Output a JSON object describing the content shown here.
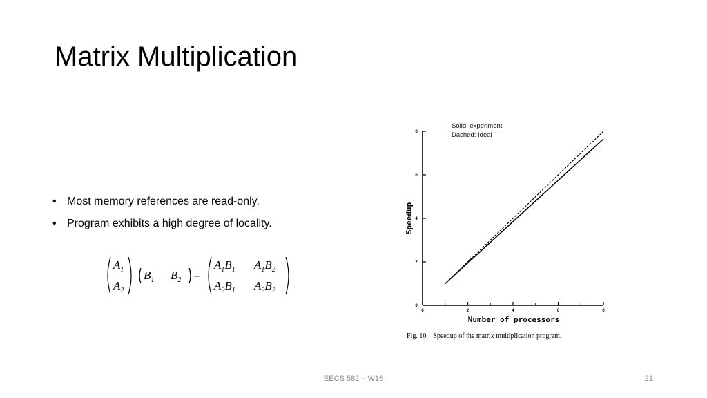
{
  "slide": {
    "title": "Matrix Multiplication",
    "bullets": [
      "Most memory references are read-only.",
      "Program exhibits a high degree of locality."
    ],
    "footer": "EECS 582 – W16",
    "page_number": "21"
  },
  "equation": {
    "left_vector": [
      {
        "v": "A",
        "s": "1"
      },
      {
        "v": "A",
        "s": "2"
      }
    ],
    "row_vector": [
      {
        "v": "B",
        "s": "1"
      },
      {
        "v": "B",
        "s": "2"
      }
    ],
    "equals": "=",
    "result": [
      [
        {
          "a": "A",
          "as": "1",
          "b": "B",
          "bs": "1"
        },
        {
          "a": "A",
          "as": "1",
          "b": "B",
          "bs": "2"
        }
      ],
      [
        {
          "a": "A",
          "as": "2",
          "b": "B",
          "bs": "1"
        },
        {
          "a": "A",
          "as": "2",
          "b": "B",
          "bs": "2"
        }
      ]
    ]
  },
  "chart_data": {
    "type": "line",
    "title": "",
    "xlabel": "Number of processors",
    "ylabel": "Speedup",
    "xlim": [
      0,
      8
    ],
    "ylim": [
      0,
      8
    ],
    "x_ticks": [
      "0",
      "2",
      "4",
      "6",
      "8"
    ],
    "y_ticks": [
      "0",
      "2",
      "4",
      "6",
      "8"
    ],
    "grid": false,
    "annotation_lines": [
      "Solid: experiment",
      "Dashed: Ideal"
    ],
    "caption": "Fig. 10.   Speedup of the matrix multiplication program.",
    "series": [
      {
        "name": "experiment",
        "style": "solid",
        "x": [
          1,
          2,
          3,
          4,
          5,
          6,
          7,
          8
        ],
        "y": [
          1,
          1.95,
          2.9,
          3.85,
          4.8,
          5.75,
          6.7,
          7.65
        ]
      },
      {
        "name": "Ideal",
        "style": "dashed",
        "x": [
          1,
          8
        ],
        "y": [
          1,
          8
        ]
      }
    ]
  }
}
